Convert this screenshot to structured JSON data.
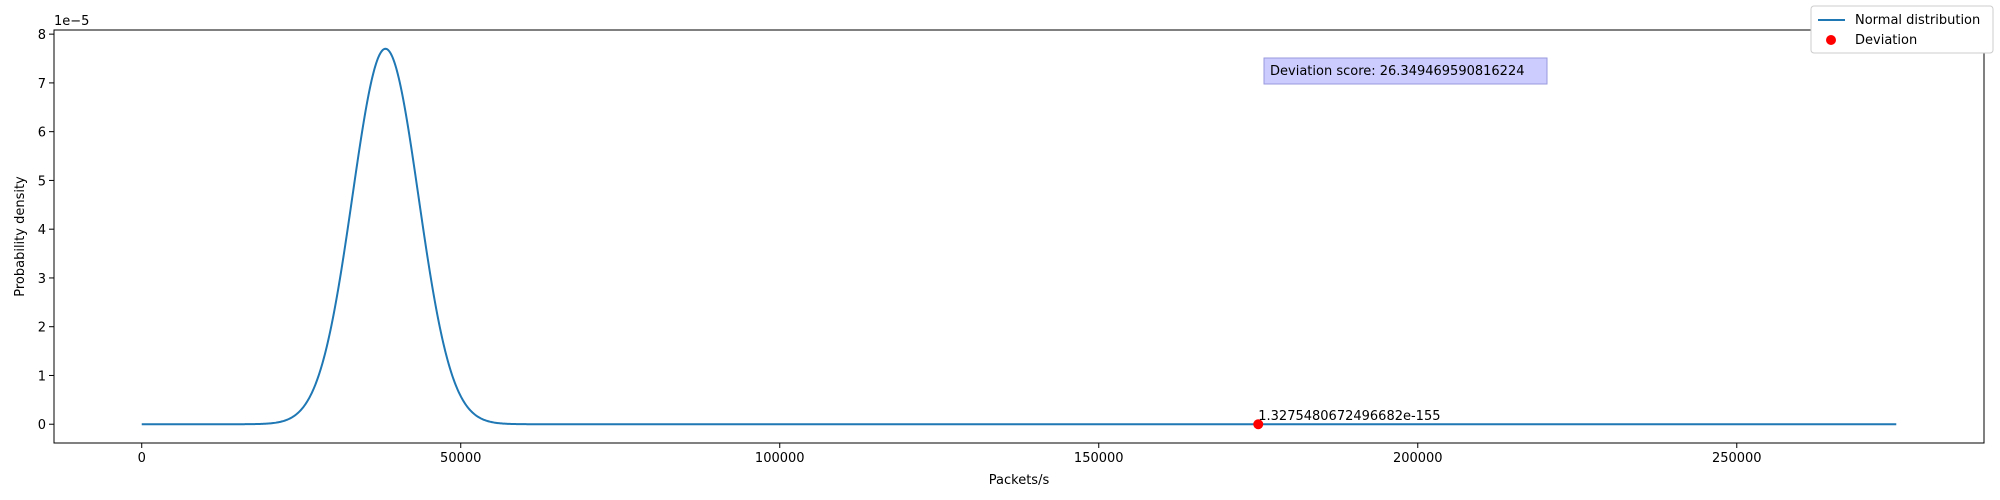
{
  "chart_data": {
    "type": "line",
    "title": "",
    "xlabel": "Packets/s",
    "ylabel": "Probability density",
    "y_offset_label": "1e−5",
    "xlim": [
      -13750,
      288750
    ],
    "ylim": [
      -0.385,
      8.085
    ],
    "x_ticks": [
      0,
      50000,
      100000,
      150000,
      200000,
      250000
    ],
    "x_tick_labels": [
      "0",
      "50000",
      "100000",
      "150000",
      "200000",
      "250000"
    ],
    "y_ticks": [
      0,
      1,
      2,
      3,
      4,
      5,
      6,
      7,
      8
    ],
    "y_tick_labels": [
      "0",
      "1",
      "2",
      "3",
      "4",
      "5",
      "6",
      "7",
      "8"
    ],
    "y_scale": 1e-05,
    "grid": false,
    "legend_position": "top-right",
    "series": [
      {
        "name": "Normal distribution",
        "kind": "line",
        "color": "#1f77b4",
        "distribution": {
          "mean": 38200,
          "std": 5180
        },
        "x_range": [
          0,
          275000
        ],
        "peak_y": 7.7
      },
      {
        "name": "Deviation",
        "kind": "scatter",
        "color": "#ff0000",
        "points": [
          {
            "x": 175000,
            "y": 0
          }
        ]
      }
    ],
    "annotations": {
      "point_label": "1.3275480672496682e-155",
      "score_box": "Deviation score: 26.349469590816224",
      "score_box_color": "#ccccff"
    }
  }
}
